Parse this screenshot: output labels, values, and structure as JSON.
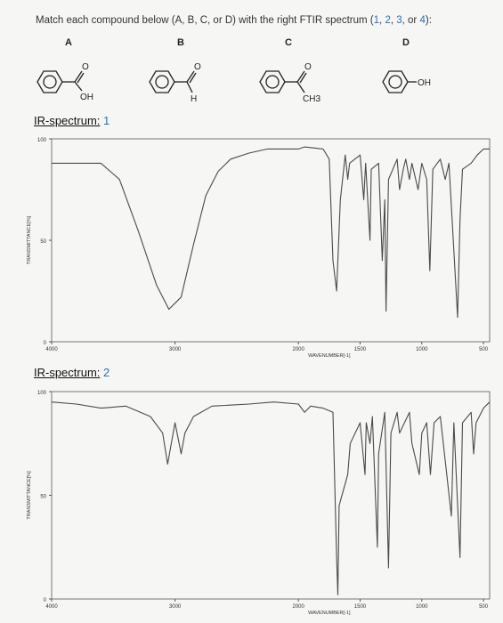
{
  "question": {
    "prefix": "Match each compound below (A, B, C, or D) with the right FTIR spectrum (",
    "n1": "1",
    "n2": "2",
    "n3": "3",
    "n4": "4",
    "suffix": "):"
  },
  "compounds": [
    {
      "label": "A",
      "group": "OH"
    },
    {
      "label": "B",
      "group": "H"
    },
    {
      "label": "C",
      "group": "CH3"
    },
    {
      "label": "D",
      "group": "OH"
    }
  ],
  "molecule_text": {
    "oxygen": "O"
  },
  "colors": {
    "accent": "#2b6fb3",
    "trace": "#4a4a4a",
    "axis": "#555555",
    "background": "#f6f6f4"
  },
  "chart_data": [
    {
      "type": "line",
      "label": "IR-spectrum:",
      "number": "1",
      "y_ticks": [
        "100",
        "50",
        "0"
      ],
      "x_ticks": [
        "4000",
        "3000",
        "2000",
        "1500",
        "1000",
        "500"
      ],
      "y_axis_title": "TRANSMITTANCE[%]",
      "x_axis_title": "WAVENUMBER[-1]",
      "xlim": [
        4000,
        450
      ],
      "ylim": [
        0,
        100
      ],
      "grid": false,
      "series": [
        {
          "points": [
            [
              4000,
              88
            ],
            [
              3600,
              88
            ],
            [
              3450,
              80
            ],
            [
              3300,
              55
            ],
            [
              3150,
              28
            ],
            [
              3050,
              16
            ],
            [
              2950,
              22
            ],
            [
              2850,
              48
            ],
            [
              2750,
              72
            ],
            [
              2650,
              84
            ],
            [
              2550,
              90
            ],
            [
              2400,
              93
            ],
            [
              2250,
              95
            ],
            [
              2150,
              95
            ],
            [
              2000,
              95
            ],
            [
              1950,
              96
            ],
            [
              1800,
              95
            ],
            [
              1750,
              90
            ],
            [
              1720,
              40
            ],
            [
              1690,
              25
            ],
            [
              1660,
              70
            ],
            [
              1620,
              92
            ],
            [
              1600,
              80
            ],
            [
              1585,
              88
            ],
            [
              1500,
              92
            ],
            [
              1470,
              70
            ],
            [
              1455,
              88
            ],
            [
              1420,
              50
            ],
            [
              1410,
              85
            ],
            [
              1350,
              88
            ],
            [
              1320,
              40
            ],
            [
              1300,
              70
            ],
            [
              1290,
              15
            ],
            [
              1270,
              80
            ],
            [
              1200,
              90
            ],
            [
              1180,
              75
            ],
            [
              1150,
              85
            ],
            [
              1130,
              90
            ],
            [
              1100,
              80
            ],
            [
              1080,
              88
            ],
            [
              1030,
              75
            ],
            [
              1000,
              88
            ],
            [
              960,
              80
            ],
            [
              935,
              35
            ],
            [
              910,
              85
            ],
            [
              850,
              90
            ],
            [
              810,
              80
            ],
            [
              780,
              88
            ],
            [
              710,
              12
            ],
            [
              690,
              60
            ],
            [
              670,
              85
            ],
            [
              600,
              88
            ],
            [
              550,
              92
            ],
            [
              500,
              95
            ],
            [
              450,
              95
            ]
          ]
        }
      ]
    },
    {
      "type": "line",
      "label": "IR-spectrum:",
      "number": "2",
      "y_ticks": [
        "100",
        "50",
        "0"
      ],
      "x_ticks": [
        "4000",
        "3000",
        "2000",
        "1500",
        "1000",
        "500"
      ],
      "y_axis_title": "TRANSMITTANCE[%]",
      "x_axis_title": "WAVENUMBER[-1]",
      "xlim": [
        4000,
        450
      ],
      "ylim": [
        0,
        100
      ],
      "grid": false,
      "series": [
        {
          "points": [
            [
              4000,
              95
            ],
            [
              3800,
              94
            ],
            [
              3600,
              92
            ],
            [
              3400,
              93
            ],
            [
              3200,
              88
            ],
            [
              3100,
              80
            ],
            [
              3060,
              65
            ],
            [
              3030,
              75
            ],
            [
              3000,
              85
            ],
            [
              2950,
              70
            ],
            [
              2920,
              80
            ],
            [
              2850,
              88
            ],
            [
              2700,
              93
            ],
            [
              2400,
              94
            ],
            [
              2200,
              95
            ],
            [
              2000,
              94
            ],
            [
              1950,
              90
            ],
            [
              1900,
              93
            ],
            [
              1800,
              92
            ],
            [
              1720,
              90
            ],
            [
              1690,
              20
            ],
            [
              1680,
              2
            ],
            [
              1670,
              45
            ],
            [
              1600,
              60
            ],
            [
              1580,
              75
            ],
            [
              1500,
              85
            ],
            [
              1460,
              60
            ],
            [
              1450,
              85
            ],
            [
              1420,
              75
            ],
            [
              1400,
              88
            ],
            [
              1360,
              25
            ],
            [
              1350,
              70
            ],
            [
              1300,
              90
            ],
            [
              1270,
              15
            ],
            [
              1250,
              80
            ],
            [
              1200,
              90
            ],
            [
              1180,
              80
            ],
            [
              1100,
              90
            ],
            [
              1080,
              75
            ],
            [
              1020,
              60
            ],
            [
              1000,
              80
            ],
            [
              960,
              85
            ],
            [
              930,
              60
            ],
            [
              900,
              85
            ],
            [
              850,
              88
            ],
            [
              760,
              40
            ],
            [
              740,
              85
            ],
            [
              690,
              20
            ],
            [
              670,
              85
            ],
            [
              600,
              90
            ],
            [
              580,
              70
            ],
            [
              560,
              85
            ],
            [
              500,
              92
            ],
            [
              450,
              95
            ]
          ]
        }
      ]
    }
  ]
}
